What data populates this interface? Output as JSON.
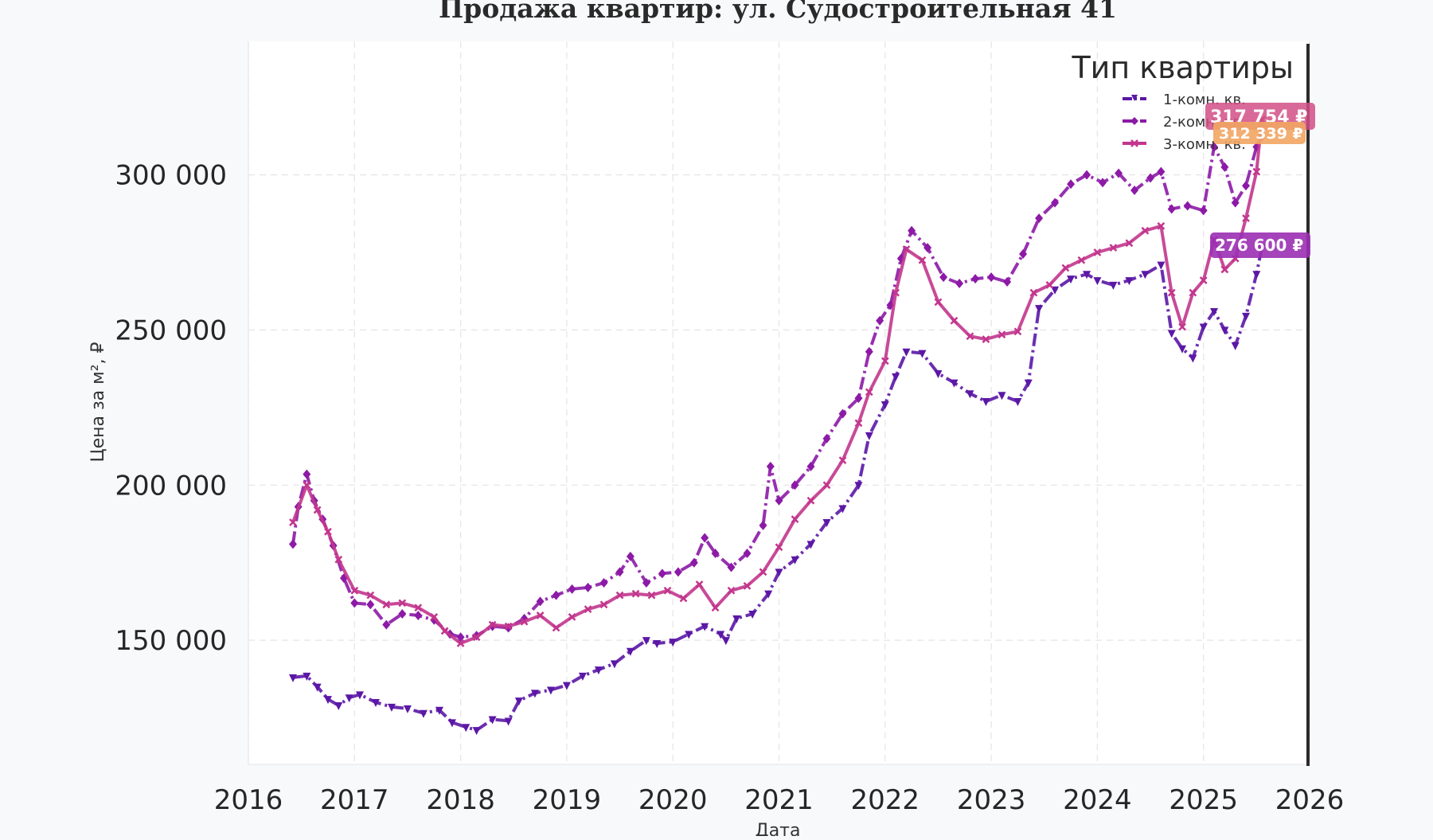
{
  "chart_data": {
    "type": "line",
    "title": "Продажа квартир: ул. Судостроительная 41",
    "xlabel": "Дата",
    "ylabel": "Цена за м², ₽",
    "x_ticks": [
      "2016",
      "2017",
      "2018",
      "2019",
      "2020",
      "2021",
      "2022",
      "2023",
      "2024",
      "2025",
      "2026"
    ],
    "y_ticks": [
      "150 000",
      "200 000",
      "250 000",
      "300 000"
    ],
    "y_tick_values": [
      150000,
      200000,
      250000,
      300000
    ],
    "xlim": [
      2016.0,
      2026.0
    ],
    "ylim": [
      110000,
      343000
    ],
    "grid": true,
    "legend": {
      "title": "Тип квартиры",
      "placement": "top-right"
    },
    "series": [
      {
        "name": "1-комн. кв.",
        "color": "#5b17a6",
        "marker": "triangle-down",
        "dash": "dashdot",
        "points": [
          [
            2016.42,
            138000
          ],
          [
            2016.55,
            138500
          ],
          [
            2016.65,
            135000
          ],
          [
            2016.75,
            131000
          ],
          [
            2016.85,
            129000
          ],
          [
            2016.95,
            131500
          ],
          [
            2017.05,
            132500
          ],
          [
            2017.2,
            130000
          ],
          [
            2017.35,
            128500
          ],
          [
            2017.5,
            128000
          ],
          [
            2017.65,
            126500
          ],
          [
            2017.8,
            127500
          ],
          [
            2017.92,
            123500
          ],
          [
            2018.05,
            122000
          ],
          [
            2018.15,
            121000
          ],
          [
            2018.3,
            124500
          ],
          [
            2018.45,
            124000
          ],
          [
            2018.55,
            130500
          ],
          [
            2018.7,
            133000
          ],
          [
            2018.85,
            134000
          ],
          [
            2019.0,
            135500
          ],
          [
            2019.15,
            138500
          ],
          [
            2019.3,
            140500
          ],
          [
            2019.45,
            142500
          ],
          [
            2019.6,
            146500
          ],
          [
            2019.75,
            150000
          ],
          [
            2019.85,
            149000
          ],
          [
            2020.0,
            149500
          ],
          [
            2020.15,
            152000
          ],
          [
            2020.3,
            154500
          ],
          [
            2020.45,
            152000
          ],
          [
            2020.5,
            150000
          ],
          [
            2020.6,
            157000
          ],
          [
            2020.75,
            158500
          ],
          [
            2020.9,
            165000
          ],
          [
            2021.0,
            172000
          ],
          [
            2021.15,
            176000
          ],
          [
            2021.3,
            181000
          ],
          [
            2021.45,
            188000
          ],
          [
            2021.6,
            192500
          ],
          [
            2021.75,
            200000
          ],
          [
            2021.85,
            216000
          ],
          [
            2022.0,
            226000
          ],
          [
            2022.1,
            235000
          ],
          [
            2022.2,
            243000
          ],
          [
            2022.35,
            242500
          ],
          [
            2022.5,
            236000
          ],
          [
            2022.65,
            233000
          ],
          [
            2022.8,
            229500
          ],
          [
            2022.95,
            227000
          ],
          [
            2023.1,
            229000
          ],
          [
            2023.25,
            227000
          ],
          [
            2023.35,
            233000
          ],
          [
            2023.45,
            257000
          ],
          [
            2023.6,
            263000
          ],
          [
            2023.75,
            266500
          ],
          [
            2023.9,
            268000
          ],
          [
            2024.0,
            266000
          ],
          [
            2024.15,
            264500
          ],
          [
            2024.3,
            266000
          ],
          [
            2024.45,
            268000
          ],
          [
            2024.6,
            271000
          ],
          [
            2024.7,
            249000
          ],
          [
            2024.8,
            244000
          ],
          [
            2024.9,
            241000
          ],
          [
            2025.0,
            251000
          ],
          [
            2025.1,
            256000
          ],
          [
            2025.2,
            250000
          ],
          [
            2025.3,
            245000
          ],
          [
            2025.4,
            254500
          ],
          [
            2025.5,
            268000
          ],
          [
            2025.55,
            276600
          ]
        ]
      },
      {
        "name": "2-комн. кв.",
        "color": "#8c1aa6",
        "marker": "diamond",
        "dash": "dashdot",
        "points": [
          [
            2016.42,
            181000
          ],
          [
            2016.47,
            193000
          ],
          [
            2016.55,
            203500
          ],
          [
            2016.62,
            195000
          ],
          [
            2016.7,
            189000
          ],
          [
            2016.8,
            180500
          ],
          [
            2016.9,
            170000
          ],
          [
            2017.0,
            162000
          ],
          [
            2017.15,
            161500
          ],
          [
            2017.3,
            155000
          ],
          [
            2017.45,
            158500
          ],
          [
            2017.6,
            158000
          ],
          [
            2017.75,
            156500
          ],
          [
            2017.9,
            152000
          ],
          [
            2018.0,
            151000
          ],
          [
            2018.15,
            151500
          ],
          [
            2018.3,
            154500
          ],
          [
            2018.45,
            154000
          ],
          [
            2018.6,
            157000
          ],
          [
            2018.75,
            162500
          ],
          [
            2018.9,
            164500
          ],
          [
            2019.05,
            166500
          ],
          [
            2019.2,
            167000
          ],
          [
            2019.35,
            168500
          ],
          [
            2019.5,
            172000
          ],
          [
            2019.6,
            177000
          ],
          [
            2019.75,
            168500
          ],
          [
            2019.9,
            171500
          ],
          [
            2020.05,
            172000
          ],
          [
            2020.2,
            175000
          ],
          [
            2020.3,
            183000
          ],
          [
            2020.4,
            178000
          ],
          [
            2020.55,
            173500
          ],
          [
            2020.7,
            178000
          ],
          [
            2020.85,
            187000
          ],
          [
            2020.92,
            206000
          ],
          [
            2021.0,
            195000
          ],
          [
            2021.15,
            200000
          ],
          [
            2021.3,
            206000
          ],
          [
            2021.45,
            215000
          ],
          [
            2021.6,
            223000
          ],
          [
            2021.75,
            228000
          ],
          [
            2021.85,
            243000
          ],
          [
            2021.95,
            253000
          ],
          [
            2022.05,
            258000
          ],
          [
            2022.15,
            273000
          ],
          [
            2022.25,
            282000
          ],
          [
            2022.4,
            276500
          ],
          [
            2022.55,
            267000
          ],
          [
            2022.7,
            265000
          ],
          [
            2022.85,
            266500
          ],
          [
            2023.0,
            267000
          ],
          [
            2023.15,
            265500
          ],
          [
            2023.3,
            274500
          ],
          [
            2023.45,
            286000
          ],
          [
            2023.6,
            291000
          ],
          [
            2023.75,
            297000
          ],
          [
            2023.9,
            300000
          ],
          [
            2024.05,
            297500
          ],
          [
            2024.2,
            300500
          ],
          [
            2024.35,
            295000
          ],
          [
            2024.5,
            299000
          ],
          [
            2024.6,
            301000
          ],
          [
            2024.7,
            289000
          ],
          [
            2024.85,
            290000
          ],
          [
            2025.0,
            288500
          ],
          [
            2025.1,
            309000
          ],
          [
            2025.2,
            302500
          ],
          [
            2025.3,
            291000
          ],
          [
            2025.4,
            296500
          ],
          [
            2025.5,
            309000
          ],
          [
            2025.55,
            312339
          ]
        ]
      },
      {
        "name": "3-комн. кв.",
        "color": "#c2368d",
        "marker": "x",
        "dash": "solid",
        "points": [
          [
            2016.42,
            188000
          ],
          [
            2016.55,
            200000
          ],
          [
            2016.65,
            192000
          ],
          [
            2016.75,
            185000
          ],
          [
            2016.85,
            176000
          ],
          [
            2017.0,
            166000
          ],
          [
            2017.15,
            164500
          ],
          [
            2017.3,
            161500
          ],
          [
            2017.45,
            162000
          ],
          [
            2017.6,
            160500
          ],
          [
            2017.75,
            157500
          ],
          [
            2017.85,
            153000
          ],
          [
            2018.0,
            149000
          ],
          [
            2018.15,
            151000
          ],
          [
            2018.3,
            155000
          ],
          [
            2018.45,
            154500
          ],
          [
            2018.6,
            156000
          ],
          [
            2018.75,
            158000
          ],
          [
            2018.9,
            154000
          ],
          [
            2019.05,
            157500
          ],
          [
            2019.2,
            160000
          ],
          [
            2019.35,
            161500
          ],
          [
            2019.5,
            164500
          ],
          [
            2019.65,
            165000
          ],
          [
            2019.8,
            164500
          ],
          [
            2019.95,
            166000
          ],
          [
            2020.1,
            163500
          ],
          [
            2020.25,
            168000
          ],
          [
            2020.4,
            160500
          ],
          [
            2020.55,
            166000
          ],
          [
            2020.7,
            167500
          ],
          [
            2020.85,
            172000
          ],
          [
            2021.0,
            180000
          ],
          [
            2021.15,
            189000
          ],
          [
            2021.3,
            195000
          ],
          [
            2021.45,
            200000
          ],
          [
            2021.6,
            208000
          ],
          [
            2021.75,
            220000
          ],
          [
            2021.85,
            230000
          ],
          [
            2022.0,
            240000
          ],
          [
            2022.1,
            262000
          ],
          [
            2022.2,
            276000
          ],
          [
            2022.35,
            272500
          ],
          [
            2022.5,
            259000
          ],
          [
            2022.65,
            253000
          ],
          [
            2022.8,
            248000
          ],
          [
            2022.95,
            247000
          ],
          [
            2023.1,
            248500
          ],
          [
            2023.25,
            249500
          ],
          [
            2023.4,
            262000
          ],
          [
            2023.55,
            264500
          ],
          [
            2023.7,
            270000
          ],
          [
            2023.85,
            272500
          ],
          [
            2024.0,
            275000
          ],
          [
            2024.15,
            276500
          ],
          [
            2024.3,
            278000
          ],
          [
            2024.45,
            282000
          ],
          [
            2024.6,
            283500
          ],
          [
            2024.7,
            262000
          ],
          [
            2024.8,
            251000
          ],
          [
            2024.9,
            262000
          ],
          [
            2025.0,
            266000
          ],
          [
            2025.1,
            279000
          ],
          [
            2025.2,
            269500
          ],
          [
            2025.3,
            273000
          ],
          [
            2025.4,
            286000
          ],
          [
            2025.5,
            301000
          ],
          [
            2025.55,
            317754
          ]
        ]
      }
    ],
    "end_labels": [
      {
        "text": "317 754 ₽",
        "color": "#d14f86",
        "value": 317754
      },
      {
        "text": "312 339 ₽",
        "color": "#f2a563",
        "value": 312339
      },
      {
        "text": "276 600 ₽",
        "color": "#9b2fb3",
        "value": 276600
      }
    ]
  }
}
